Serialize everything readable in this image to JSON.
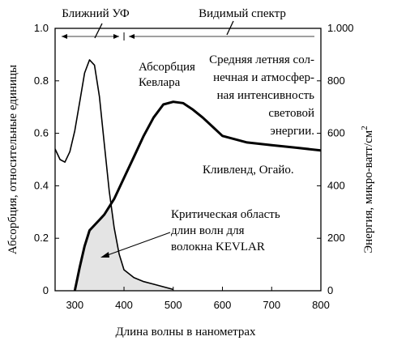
{
  "chart_data": {
    "type": "line",
    "xlabel": "Длина волны в нанометрах",
    "ylabel_left": "Абсорбция, относительные единицы",
    "ylabel_right": "Энергия, микро-ватт/см",
    "ylabel_right_sup": "2",
    "xlim": [
      260,
      800
    ],
    "ylim_left": [
      0,
      1.0
    ],
    "ylim_right": [
      0,
      1000
    ],
    "x_ticks": [
      300,
      400,
      500,
      600,
      700,
      800
    ],
    "x_tick_labels": [
      "300",
      "400",
      "500",
      "600",
      "700",
      "800"
    ],
    "y_left_ticks": [
      0,
      0.2,
      0.4,
      0.6,
      0.8,
      1.0
    ],
    "y_left_tick_labels": [
      "0",
      "0.2",
      "0.4",
      "0.6",
      "0.8",
      "1.0"
    ],
    "y_right_ticks": [
      0,
      200,
      400,
      600,
      800,
      1000
    ],
    "y_right_tick_labels": [
      "0",
      "200",
      "400",
      "600",
      "800",
      "1.000"
    ],
    "regions": [
      {
        "label": "Ближний УФ",
        "x_start": 260,
        "x_end": 400
      },
      {
        "label": "Видимый спектр",
        "x_start": 400,
        "x_end": 800
      }
    ],
    "series": [
      {
        "name": "Абсорбция Кевлара",
        "axis": "left",
        "x": [
          260,
          270,
          280,
          290,
          300,
          310,
          320,
          330,
          340,
          350,
          360,
          370,
          380,
          390,
          400,
          420,
          440,
          460,
          480,
          500
        ],
        "y": [
          0.54,
          0.5,
          0.49,
          0.53,
          0.61,
          0.72,
          0.83,
          0.88,
          0.86,
          0.74,
          0.56,
          0.38,
          0.24,
          0.14,
          0.08,
          0.05,
          0.035,
          0.025,
          0.015,
          0.005
        ]
      },
      {
        "name": "Кливленд, Огайо.",
        "axis": "right",
        "x": [
          300,
          310,
          320,
          330,
          340,
          350,
          360,
          380,
          400,
          420,
          440,
          460,
          480,
          500,
          520,
          540,
          560,
          580,
          600,
          650,
          700,
          750,
          800
        ],
        "y": [
          0,
          90,
          170,
          230,
          250,
          270,
          290,
          350,
          430,
          510,
          590,
          660,
          710,
          720,
          715,
          690,
          660,
          625,
          590,
          565,
          555,
          545,
          535
        ]
      }
    ],
    "annotations": [
      "Абсорбция\nКевлара",
      "Средняя летняя сол-\nнечная и атмосфер-\nная интенсивность\nсветовой\nэнергии.",
      "Кливленд, Огайо.",
      "Критическая область\nдлин волн для\nволокна KEVLAR"
    ]
  }
}
